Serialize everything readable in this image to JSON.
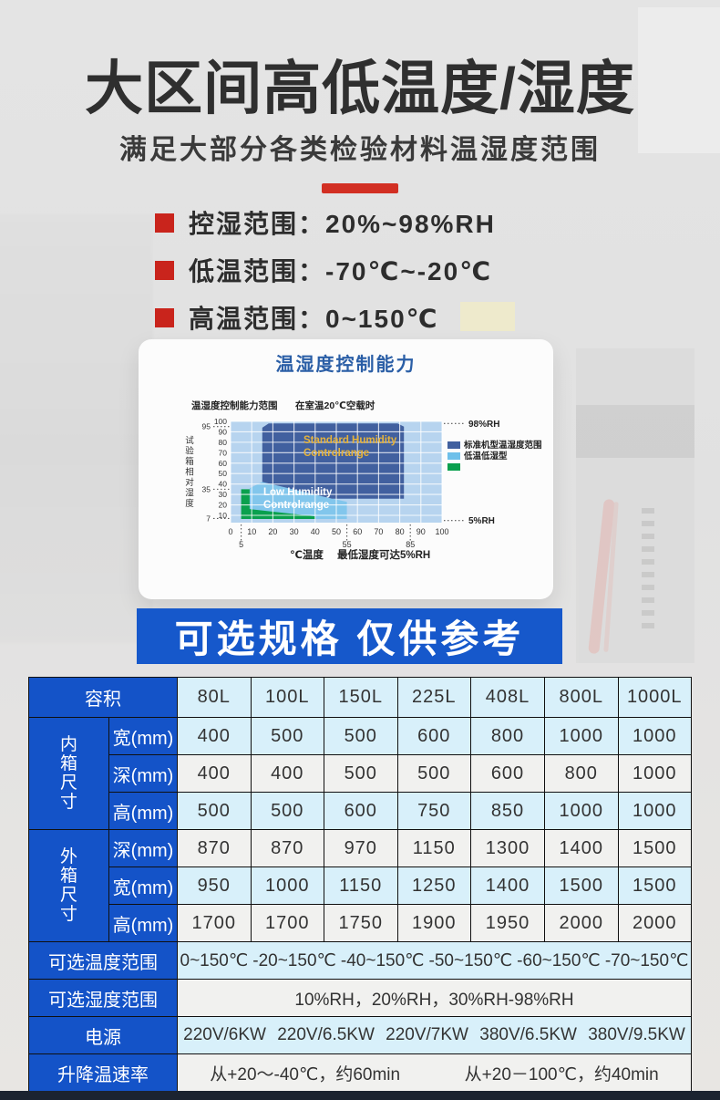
{
  "page": {
    "title": "大区间高低温度/湿度",
    "subtitle": "满足大部分各类检验材料温湿度范围",
    "bullets": [
      "控湿范围：20%~98%RH",
      "低温范围：-70℃~-20℃",
      "高温范围：0~150℃"
    ],
    "banner": "可选规格 仅供参考"
  },
  "chart_data": {
    "type": "area",
    "title": "温湿度控制能力",
    "corner_label": "温湿度控制能力范围",
    "condition_label": "在室温20℃空载时",
    "ylabel": "试验箱相对湿度",
    "xlabel": "℃温度",
    "footnote": "最低湿度可达5%RH",
    "xlim": [
      0,
      100
    ],
    "ylim": [
      3,
      100
    ],
    "x_ticks": [
      0,
      10,
      20,
      30,
      40,
      50,
      60,
      70,
      80,
      90,
      100
    ],
    "x_marks": [
      5,
      55,
      85
    ],
    "y_ticks": [
      100,
      90,
      80,
      70,
      60,
      50,
      40,
      30,
      20,
      10
    ],
    "y_marks": [
      95,
      35,
      7
    ],
    "ref_lines": [
      {
        "y": 98,
        "label": "98%RH"
      },
      {
        "y": 5,
        "label": "5%RH"
      }
    ],
    "plot_bg_color": "#b7d4ef",
    "regions": [
      {
        "name": "low-humidity-control-range",
        "color": "#82c6ec",
        "label_lines": [
          "Low Humidity",
          "Controlrange"
        ],
        "label_color": "#ffffff",
        "points": [
          [
            9,
            6.5
          ],
          [
            9,
            36
          ],
          [
            15,
            42
          ],
          [
            48,
            26
          ],
          [
            55,
            23
          ],
          [
            55,
            6.5
          ]
        ]
      },
      {
        "name": "standard-humidity-control-range",
        "color": "#41609f",
        "label_lines": [
          "Standard Humidity",
          "Controlrange"
        ],
        "label_color": "#e6b33c",
        "points": [
          [
            15,
            42
          ],
          [
            15,
            94
          ],
          [
            18,
            98
          ],
          [
            79,
            98
          ],
          [
            82,
            95
          ],
          [
            82,
            26
          ],
          [
            48,
            26
          ]
        ]
      },
      {
        "name": "low-temp-low-humidity",
        "color": "#0aa04e",
        "label_lines": [],
        "label_color": "",
        "points": [
          [
            5,
            6.5
          ],
          [
            5,
            35
          ],
          [
            9,
            35
          ],
          [
            9,
            16
          ],
          [
            40,
            9
          ],
          [
            40,
            6.5
          ]
        ]
      }
    ],
    "legend": [
      {
        "color": "#41609f",
        "label": "标准机型温湿度范围"
      },
      {
        "color": "#6ec0ea",
        "label": "低温低湿型"
      },
      {
        "color": "#0aa04e",
        "label": ""
      }
    ],
    "legend_position": "right"
  },
  "table": {
    "header": {
      "label": "容积",
      "columns": [
        "80L",
        "100L",
        "150L",
        "225L",
        "408L",
        "800L",
        "1000L"
      ]
    },
    "groups": [
      {
        "label": "内箱尺寸",
        "rows": [
          {
            "label": "宽(mm)",
            "values": [
              "400",
              "500",
              "500",
              "600",
              "800",
              "1000",
              "1000"
            ]
          },
          {
            "label": "深(mm)",
            "values": [
              "400",
              "400",
              "500",
              "500",
              "600",
              "800",
              "1000"
            ]
          },
          {
            "label": "高(mm)",
            "values": [
              "500",
              "500",
              "600",
              "750",
              "850",
              "1000",
              "1000"
            ]
          }
        ]
      },
      {
        "label": "外箱尺寸",
        "rows": [
          {
            "label": "深(mm)",
            "values": [
              "870",
              "870",
              "970",
              "1150",
              "1300",
              "1400",
              "1500"
            ]
          },
          {
            "label": "宽(mm)",
            "values": [
              "950",
              "1000",
              "1150",
              "1250",
              "1400",
              "1500",
              "1500"
            ]
          },
          {
            "label": "高(mm)",
            "values": [
              "1700",
              "1700",
              "1750",
              "1900",
              "1950",
              "2000",
              "2000"
            ]
          }
        ]
      }
    ],
    "spec_rows": [
      {
        "label": "可选温度范围",
        "values": [
          "0~150℃",
          "-20~150℃",
          "-40~150℃",
          "-50~150℃",
          "-60~150℃",
          "-70~150℃"
        ]
      },
      {
        "label": "可选湿度范围",
        "values": [
          "10%RH，20%RH，30%RH-98%RH"
        ]
      },
      {
        "label": "电源",
        "values": [
          "220V/6KW",
          "220V/6.5KW",
          "220V/7KW",
          "380V/6.5KW",
          "380V/9.5KW"
        ]
      },
      {
        "label": "升降温速率",
        "values": [
          "从+20～-40℃，约60min",
          "从+20－100℃，约40min"
        ]
      }
    ]
  },
  "colors": {
    "accent_red": "#c9241c",
    "banner_blue": "#1658cb",
    "table_label_blue": "#1453c8",
    "row_light_blue": "#d8f0fa",
    "row_white": "#f1f1ef",
    "chart_title_blue": "#2a5ea6",
    "bottom_bar_navy": "#1b2330"
  }
}
